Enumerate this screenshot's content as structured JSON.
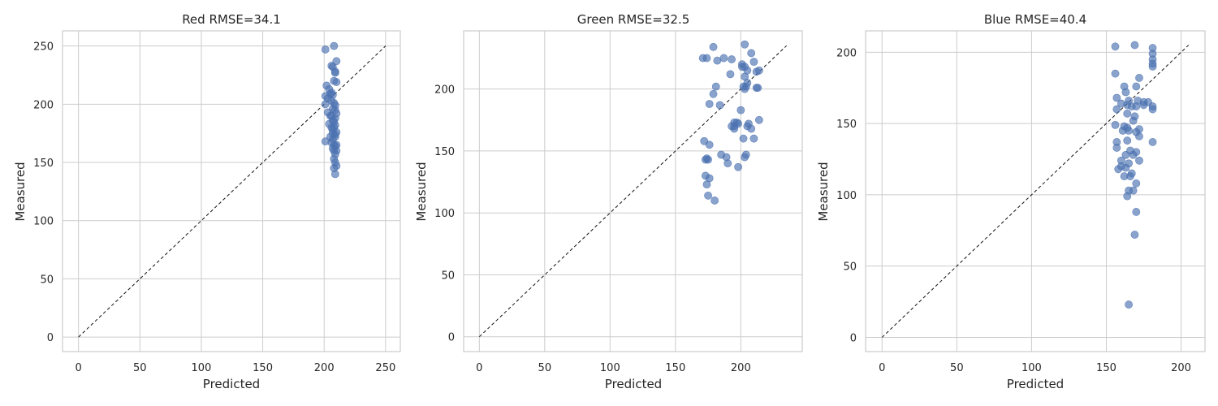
{
  "chart_data": [
    {
      "type": "scatter",
      "title": "Red RMSE=34.1",
      "xlabel": "Predicted",
      "ylabel": "Measured",
      "xlim": [
        -13,
        262
      ],
      "ylim": [
        -12.5,
        263
      ],
      "xticks": [
        0,
        50,
        100,
        150,
        200,
        250
      ],
      "yticks": [
        0,
        50,
        100,
        150,
        200,
        250
      ],
      "identity_line_max": 250,
      "grid": true,
      "marker_color": "#4c72b0",
      "x": [
        201,
        208,
        210,
        206,
        207,
        209,
        209,
        208,
        210,
        202,
        204,
        205,
        207,
        201,
        203,
        206,
        208,
        209,
        207,
        203,
        205,
        210,
        209,
        208,
        204,
        206,
        207,
        210,
        208,
        209,
        205,
        207,
        209,
        201,
        206,
        208,
        209,
        207,
        210,
        209,
        208,
        209,
        210,
        209,
        206,
        207,
        209,
        208,
        201,
        206,
        208,
        209,
        210,
        207
      ],
      "y": [
        247,
        250,
        237,
        233,
        232,
        227,
        228,
        220,
        219,
        216,
        213,
        209,
        208,
        207,
        205,
        203,
        201,
        199,
        196,
        193,
        190,
        192,
        188,
        185,
        183,
        180,
        178,
        176,
        180,
        172,
        172,
        170,
        174,
        168,
        167,
        165,
        164,
        162,
        160,
        157,
        153,
        150,
        147,
        140,
        190,
        175,
        182,
        160,
        200,
        210,
        145,
        195,
        165,
        186
      ]
    },
    {
      "type": "scatter",
      "title": "Green RMSE=32.5",
      "xlabel": "Predicted",
      "ylabel": "Measured",
      "xlim": [
        -12,
        247
      ],
      "ylim": [
        -12,
        247
      ],
      "xticks": [
        0,
        50,
        100,
        150,
        200
      ],
      "yticks": [
        0,
        50,
        100,
        150,
        200
      ],
      "identity_line_max": 235,
      "grid": true,
      "marker_color": "#4c72b0",
      "x": [
        179,
        171,
        174,
        203,
        208,
        203,
        187,
        193,
        201,
        210,
        201,
        205,
        203,
        212,
        214,
        192,
        181,
        204,
        213,
        179,
        202,
        203,
        176,
        195,
        197,
        184,
        193,
        195,
        198,
        205,
        208,
        210,
        172,
        176,
        185,
        189,
        174,
        173,
        175,
        190,
        198,
        203,
        195,
        173,
        176,
        174,
        175,
        180,
        202,
        204,
        206,
        214,
        200,
        212,
        182,
        205
      ],
      "y": [
        234,
        225,
        225,
        236,
        229,
        218,
        225,
        224,
        220,
        222,
        218,
        215,
        210,
        214,
        215,
        212,
        202,
        202,
        201,
        196,
        202,
        200,
        188,
        173,
        173,
        187,
        170,
        168,
        172,
        170,
        168,
        160,
        158,
        155,
        147,
        145,
        144,
        143,
        143,
        140,
        137,
        145,
        170,
        130,
        128,
        123,
        114,
        110,
        160,
        147,
        172,
        175,
        183,
        201,
        223,
        205
      ]
    },
    {
      "type": "scatter",
      "title": "Blue RMSE=40.4",
      "xlabel": "Predicted",
      "ylabel": "Measured",
      "xlim": [
        -11,
        216
      ],
      "ylim": [
        -10,
        215
      ],
      "xticks": [
        0,
        50,
        100,
        150,
        200
      ],
      "yticks": [
        0,
        50,
        100,
        150,
        200
      ],
      "identity_line_max": 205,
      "grid": true,
      "marker_color": "#4c72b0",
      "x": [
        156,
        169,
        181,
        181,
        181,
        181,
        172,
        156,
        162,
        170,
        163,
        157,
        165,
        175,
        178,
        160,
        171,
        167,
        164,
        170,
        157,
        164,
        175,
        169,
        162,
        156,
        181,
        164,
        161,
        168,
        165,
        172,
        157,
        157,
        170,
        166,
        163,
        160,
        170,
        172,
        165,
        158,
        167,
        166,
        163,
        162,
        170,
        168,
        165,
        164,
        170,
        169,
        165,
        181,
        181,
        181,
        164,
        168,
        172,
        160
      ],
      "y": [
        204,
        205,
        203,
        199,
        195,
        192,
        182,
        185,
        176,
        176,
        172,
        168,
        166,
        165,
        165,
        164,
        166,
        162,
        163,
        162,
        160,
        157,
        163,
        155,
        148,
        149,
        160,
        147,
        145,
        152,
        145,
        141,
        137,
        133,
        144,
        131,
        128,
        124,
        130,
        124,
        122,
        118,
        115,
        113,
        119,
        113,
        108,
        103,
        103,
        99,
        88,
        72,
        23,
        137,
        162,
        190,
        138,
        128,
        146,
        120
      ]
    }
  ]
}
